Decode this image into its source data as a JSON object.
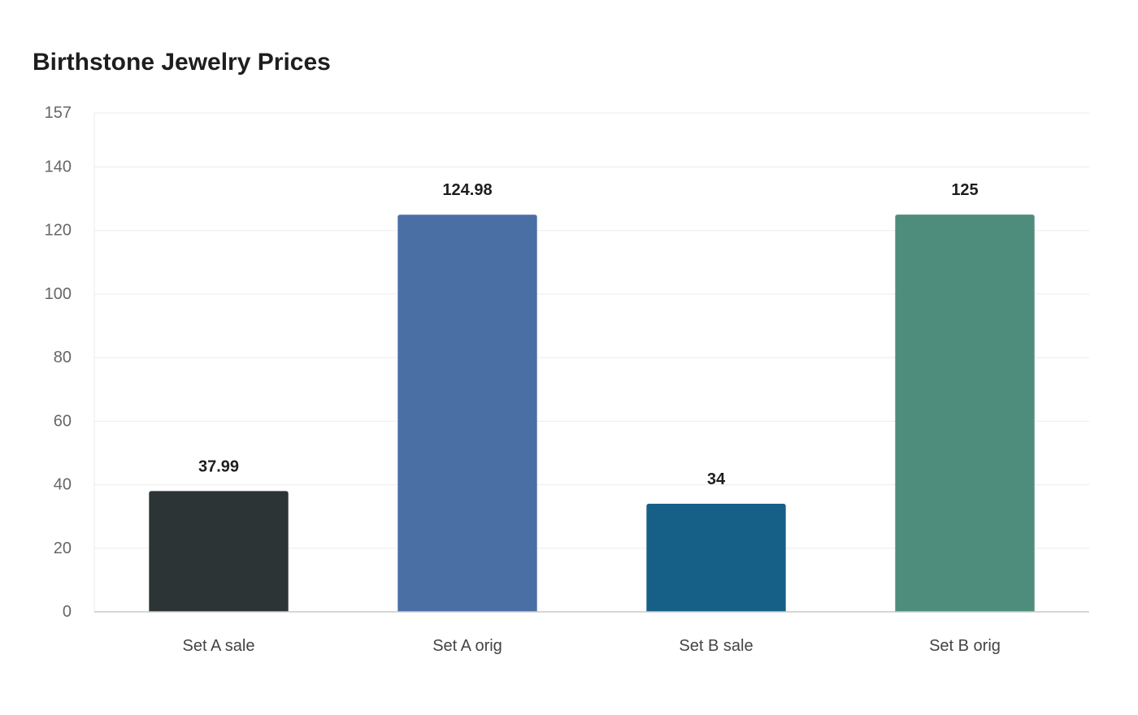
{
  "chart_data": {
    "type": "bar",
    "title": "Birthstone Jewelry Prices",
    "xlabel": "",
    "ylabel": "",
    "categories": [
      "Set A sale",
      "Set A orig",
      "Set B sale",
      "Set B orig"
    ],
    "values": [
      37.99,
      124.98,
      34,
      125
    ],
    "value_labels": [
      "37.99",
      "124.98",
      "34",
      "125"
    ],
    "colors": [
      "#2d3436",
      "#4a6fa5",
      "#166088",
      "#4e8d7c"
    ],
    "ylim": [
      0,
      157
    ],
    "yticks": [
      0,
      20,
      40,
      60,
      80,
      100,
      120,
      140,
      157
    ],
    "grid": true,
    "legend": "none"
  }
}
